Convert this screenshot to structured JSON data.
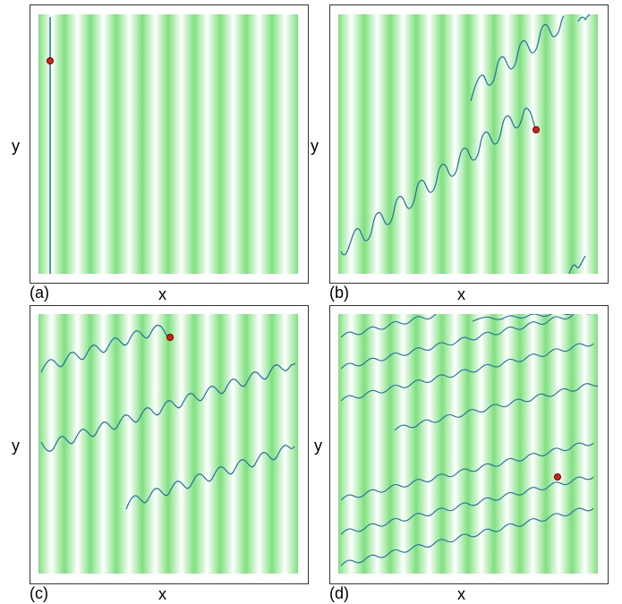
{
  "colors": {
    "stripe_dark": "#7fe07f",
    "stripe_light": "#ffffff",
    "trajectory": "#1f6fa0",
    "marker_fill": "#d62020",
    "marker_stroke": "#6b0000",
    "frame": "#333333"
  },
  "panels": [
    {
      "tag": "(a)",
      "xlabel": "x",
      "ylabel": "y"
    },
    {
      "tag": "(b)",
      "xlabel": "x",
      "ylabel": "y"
    },
    {
      "tag": "(c)",
      "xlabel": "x",
      "ylabel": "y"
    },
    {
      "tag": "(d)",
      "xlabel": "x",
      "ylabel": "y"
    }
  ]
}
